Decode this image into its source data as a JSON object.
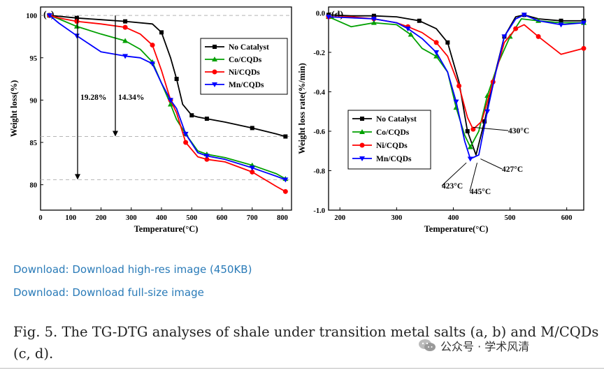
{
  "chart_data": [
    {
      "panel": "(c)",
      "type": "line",
      "xlabel": "Temperature(°C)",
      "ylabel": "Weight loss(%)",
      "xlim": [
        0,
        830
      ],
      "ylim": [
        77,
        101
      ],
      "xticks": [
        0,
        100,
        200,
        300,
        400,
        500,
        600,
        700,
        800
      ],
      "yticks": [
        80,
        85,
        90,
        95,
        100
      ],
      "legend": [
        "No Catalyst",
        "Co/CQDs",
        "Ni/CQDs",
        "Mn/CQDs"
      ],
      "legend_position": "top-right",
      "annotations": [
        "19.28%",
        "14.34%"
      ],
      "series": [
        {
          "name": "No Catalyst",
          "color": "#000000",
          "marker": "square",
          "x": [
            30,
            60,
            120,
            200,
            280,
            370,
            400,
            430,
            450,
            470,
            500,
            520,
            550,
            610,
            700,
            780,
            810
          ],
          "y": [
            100,
            99.9,
            99.7,
            99.5,
            99.3,
            99,
            98,
            95,
            92.5,
            89.5,
            88.2,
            88,
            87.8,
            87.4,
            86.7,
            86,
            85.7
          ]
        },
        {
          "name": "Co/CQDs",
          "color": "#00a000",
          "marker": "triangle-up",
          "x": [
            30,
            60,
            120,
            200,
            280,
            330,
            370,
            400,
            430,
            450,
            480,
            520,
            550,
            610,
            700,
            780,
            810
          ],
          "y": [
            100,
            99.6,
            98.7,
            97.8,
            97,
            96,
            94.5,
            92,
            89.5,
            87.7,
            86,
            84,
            83.6,
            83.2,
            82.3,
            81.3,
            80.7
          ]
        },
        {
          "name": "Ni/CQDs",
          "color": "#ff0000",
          "marker": "circle",
          "x": [
            30,
            60,
            120,
            200,
            280,
            330,
            370,
            400,
            430,
            450,
            480,
            520,
            550,
            610,
            700,
            780,
            810
          ],
          "y": [
            100,
            99.7,
            99.3,
            99,
            98.6,
            97.8,
            96.5,
            93.5,
            90,
            88.5,
            85,
            83.3,
            83,
            82.7,
            81.5,
            79.8,
            79.2
          ]
        },
        {
          "name": "Mn/CQDs",
          "color": "#0000ff",
          "marker": "triangle-down",
          "x": [
            30,
            60,
            120,
            200,
            280,
            330,
            370,
            400,
            430,
            450,
            480,
            520,
            550,
            610,
            700,
            780,
            810
          ],
          "y": [
            100,
            99.1,
            97.6,
            95.7,
            95.2,
            95,
            94.3,
            92,
            90,
            89,
            86,
            83.8,
            83.4,
            83,
            82,
            81,
            80.6
          ]
        }
      ]
    },
    {
      "panel": "(d)",
      "type": "line",
      "xlabel": "Temperature(°C)",
      "ylabel": "Weight loss rate(%/min)",
      "xlim": [
        180,
        630
      ],
      "ylim": [
        -1.0,
        0.03
      ],
      "xticks": [
        200,
        300,
        400,
        500,
        600
      ],
      "yticks": [
        0.0,
        -0.2,
        -0.4,
        -0.6,
        -0.8,
        -1.0
      ],
      "legend": [
        "No Catalyst",
        "Co/CQDs",
        "Ni/CQDs",
        "Mn/CQDs"
      ],
      "legend_position": "center-left",
      "annotations": [
        "430°C",
        "427°C",
        "423°C",
        "445°C"
      ],
      "series": [
        {
          "name": "No Catalyst",
          "color": "#000000",
          "marker": "square",
          "x": [
            180,
            220,
            260,
            300,
            340,
            370,
            390,
            410,
            425,
            440,
            455,
            470,
            490,
            510,
            525,
            550,
            590,
            630
          ],
          "y": [
            -0.01,
            -0.015,
            -0.015,
            -0.02,
            -0.04,
            -0.08,
            -0.15,
            -0.35,
            -0.6,
            -0.72,
            -0.55,
            -0.35,
            -0.12,
            -0.02,
            -0.01,
            -0.03,
            -0.04,
            -0.04
          ]
        },
        {
          "name": "Co/CQDs",
          "color": "#00a000",
          "marker": "triangle-up",
          "x": [
            180,
            220,
            260,
            300,
            325,
            345,
            370,
            390,
            405,
            420,
            430,
            445,
            460,
            480,
            500,
            520,
            550,
            590,
            630
          ],
          "y": [
            -0.02,
            -0.07,
            -0.05,
            -0.06,
            -0.11,
            -0.18,
            -0.22,
            -0.3,
            -0.48,
            -0.62,
            -0.68,
            -0.6,
            -0.42,
            -0.25,
            -0.12,
            -0.03,
            -0.04,
            -0.05,
            -0.05
          ]
        },
        {
          "name": "Ni/CQDs",
          "color": "#ff0000",
          "marker": "circle",
          "x": [
            180,
            220,
            260,
            300,
            320,
            345,
            370,
            390,
            410,
            425,
            435,
            450,
            470,
            490,
            510,
            525,
            550,
            590,
            630
          ],
          "y": [
            -0.02,
            -0.02,
            -0.03,
            -0.05,
            -0.07,
            -0.1,
            -0.15,
            -0.22,
            -0.37,
            -0.53,
            -0.59,
            -0.55,
            -0.35,
            -0.15,
            -0.08,
            -0.06,
            -0.12,
            -0.21,
            -0.18
          ]
        },
        {
          "name": "Mn/CQDs",
          "color": "#0000ff",
          "marker": "triangle-down",
          "x": [
            180,
            220,
            260,
            300,
            320,
            345,
            370,
            390,
            405,
            420,
            430,
            445,
            460,
            475,
            490,
            510,
            525,
            550,
            590,
            630
          ],
          "y": [
            -0.02,
            -0.025,
            -0.03,
            -0.05,
            -0.08,
            -0.13,
            -0.2,
            -0.3,
            -0.45,
            -0.65,
            -0.74,
            -0.72,
            -0.5,
            -0.3,
            -0.12,
            -0.03,
            -0.01,
            -0.04,
            -0.06,
            -0.05
          ]
        }
      ]
    }
  ],
  "links": {
    "download_highres": "Download: Download high-res image (450KB)",
    "download_full": "Download: Download full-size image"
  },
  "caption": "Fig. 5. The TG-DTG analyses of shale under transition metal salts (a, b) and M/CQDs (c, d).",
  "watermark": {
    "text": "公众号 · 学术风清",
    "icon": "wechat-icon"
  }
}
